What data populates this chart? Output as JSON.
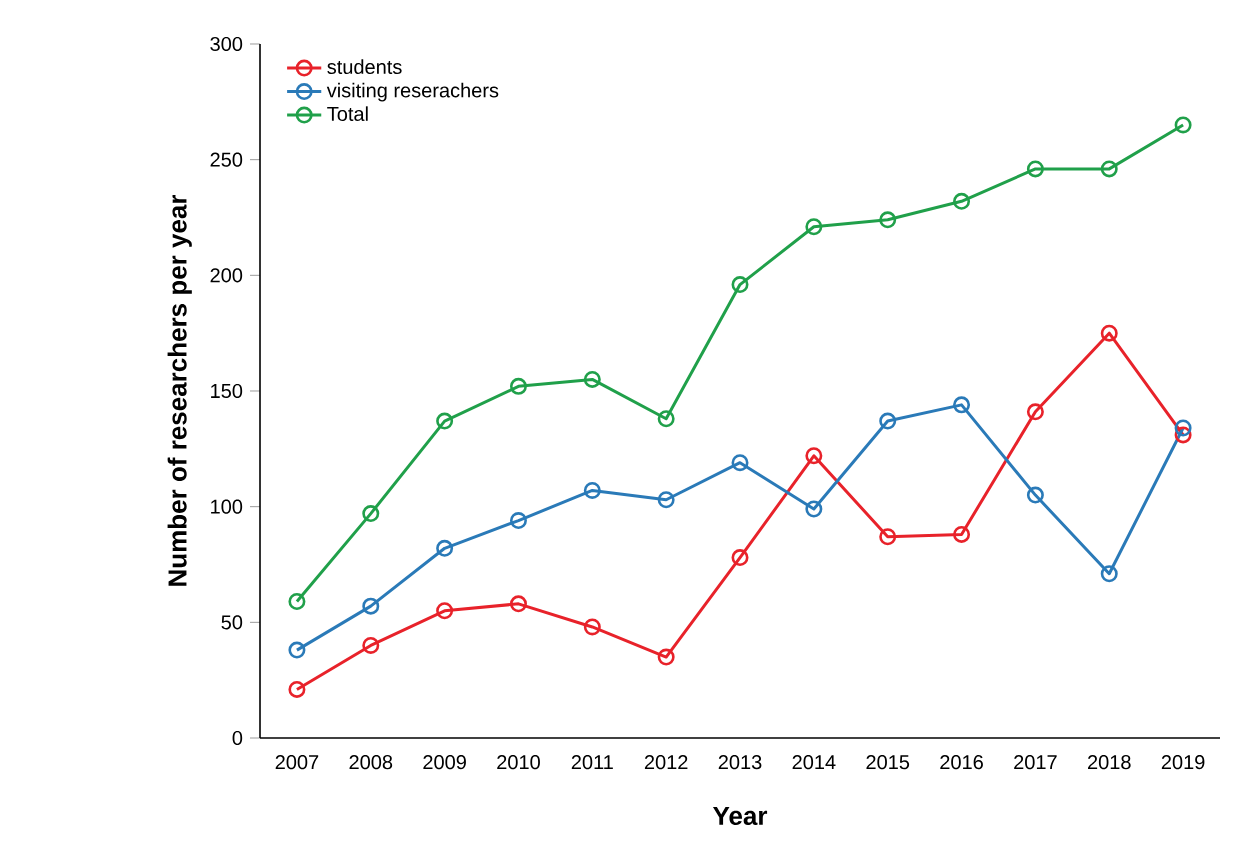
{
  "chart_data": {
    "type": "line",
    "xlabel": "Year",
    "ylabel": "Number of researchers per year",
    "categories": [
      "2007",
      "2008",
      "2009",
      "2010",
      "2011",
      "2012",
      "2013",
      "2014",
      "2015",
      "2016",
      "2017",
      "2018",
      "2019"
    ],
    "series": [
      {
        "name": "students",
        "color": "#e8222a",
        "values": [
          21,
          40,
          55,
          58,
          48,
          35,
          78,
          122,
          87,
          88,
          141,
          175,
          131
        ]
      },
      {
        "name": "visiting reserachers",
        "color": "#2a7ab8",
        "values": [
          38,
          57,
          82,
          94,
          107,
          103,
          119,
          99,
          137,
          144,
          105,
          71,
          134
        ]
      },
      {
        "name": "Total",
        "color": "#20a04a",
        "values": [
          59,
          97,
          137,
          152,
          155,
          138,
          196,
          221,
          224,
          232,
          246,
          246,
          265
        ]
      }
    ],
    "ylim": [
      0,
      300
    ],
    "yticks": [
      0,
      50,
      100,
      150,
      200,
      250,
      300
    ],
    "grid": false,
    "legend": "top left",
    "marker": "circle",
    "line_style": "solid"
  }
}
